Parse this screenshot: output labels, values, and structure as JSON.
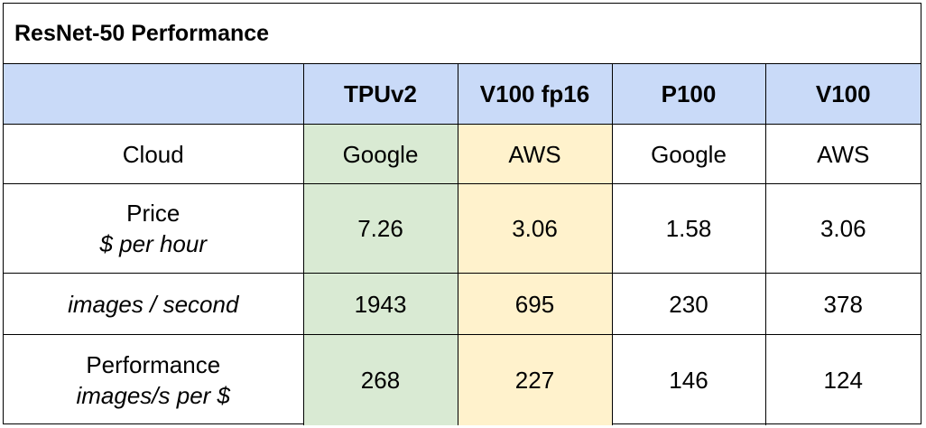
{
  "title": "ResNet-50 Performance",
  "table": {
    "columns": [
      "TPUv2",
      "V100 fp16",
      "P100",
      "V100"
    ],
    "rows": [
      {
        "label": "Cloud",
        "cells": [
          "Google",
          "AWS",
          "Google",
          "AWS"
        ]
      },
      {
        "label": "Price",
        "unit": "$ per hour",
        "cells": [
          7.26,
          3.06,
          1.58,
          3.06
        ]
      },
      {
        "unit": "images / second",
        "cells": [
          1943,
          695,
          230,
          378
        ]
      },
      {
        "label": "Performance",
        "unit": "images/s per $",
        "cells": [
          268,
          227,
          146,
          124
        ]
      }
    ]
  }
}
